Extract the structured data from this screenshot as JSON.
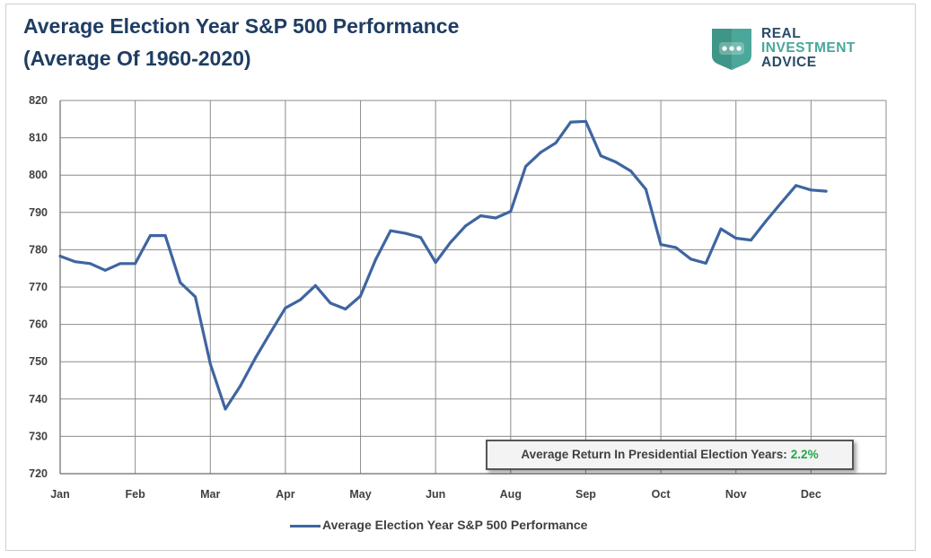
{
  "title": {
    "line1": "Average Election Year S&P 500 Performance",
    "line2": "(Average Of 1960-2020)"
  },
  "logo": {
    "line1": "REAL",
    "line2": "INVESTMENT",
    "line3": "ADVICE",
    "icon": "chat-bubble-shield-icon",
    "colors": {
      "badge": "#4aa79a",
      "text": "#2b4a68"
    }
  },
  "callout": {
    "label": "Average Return In Presidential Election Years:",
    "value": "2.2%"
  },
  "legend": {
    "label": "Average Election Year S&P 500 Performance"
  },
  "colors": {
    "series": "#3f65a0",
    "grid": "#8c8c8c",
    "title": "#1f3d63",
    "callout_value": "#22a84a"
  },
  "chart_data": {
    "type": "line",
    "title": "Average Election Year S&P 500 Performance (Average Of 1960-2020)",
    "xlabel": "",
    "ylabel": "",
    "ylim": [
      720,
      820
    ],
    "yticks": [
      720,
      730,
      740,
      750,
      760,
      770,
      780,
      790,
      800,
      810,
      820
    ],
    "xticks": [
      "Jan",
      "Feb",
      "Mar",
      "Apr",
      "May",
      "Jun",
      "Aug",
      "Sep",
      "Oct",
      "Nov",
      "Dec"
    ],
    "grid": true,
    "legend_position": "bottom",
    "series": [
      {
        "name": "Average Election Year S&P 500 Performance",
        "x": [
          0,
          0.2,
          0.4,
          0.6,
          0.8,
          1,
          1.2,
          1.4,
          1.6,
          1.8,
          2,
          2.2,
          2.4,
          2.6,
          2.8,
          3,
          3.2,
          3.4,
          3.6,
          3.8,
          4,
          4.2,
          4.4,
          4.6,
          4.8,
          5,
          5.2,
          5.4,
          5.6,
          5.8,
          6,
          6.2,
          6.4,
          6.6,
          6.8,
          7,
          7.2,
          7.4,
          7.6,
          7.8,
          8,
          8.2,
          8.4,
          8.6,
          8.8,
          9,
          9.2,
          9.4,
          9.6,
          9.8,
          10,
          10.2
        ],
        "values": [
          778.3,
          776.8,
          776.3,
          774.5,
          776.3,
          776.3,
          783.8,
          783.8,
          771.2,
          767.4,
          749.4,
          737.3,
          743.5,
          751.0,
          757.8,
          764.4,
          766.6,
          770.4,
          765.7,
          764.1,
          767.6,
          777.3,
          785.1,
          784.4,
          783.3,
          776.6,
          782.0,
          786.4,
          789.1,
          788.5,
          790.3,
          802.3,
          806.1,
          808.6,
          814.2,
          814.4,
          805.2,
          803.5,
          801.1,
          796.2,
          781.4,
          780.6,
          777.5,
          776.4,
          785.6,
          783.1,
          782.6,
          787.7,
          792.5,
          797.2,
          796.0,
          795.7
        ]
      }
    ]
  }
}
